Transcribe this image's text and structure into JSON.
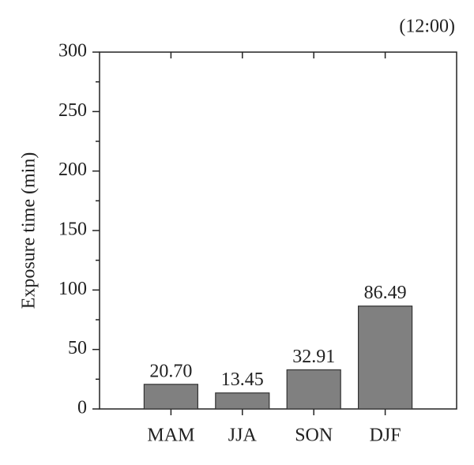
{
  "chart_data": {
    "type": "bar",
    "annotation": "(12:00)",
    "y_label": "Exposure time (min)",
    "categories": [
      "MAM",
      "JJA",
      "SON",
      "DJF"
    ],
    "values": [
      20.7,
      13.45,
      32.91,
      86.49
    ],
    "value_labels": [
      "20.70",
      "13.45",
      "32.91",
      "86.49"
    ],
    "color": "#808080",
    "ylim": [
      0,
      300
    ],
    "yticks": [
      0,
      50,
      100,
      150,
      200,
      250,
      300
    ],
    "yminorticks": [
      25,
      75,
      125,
      175,
      225,
      275
    ]
  }
}
